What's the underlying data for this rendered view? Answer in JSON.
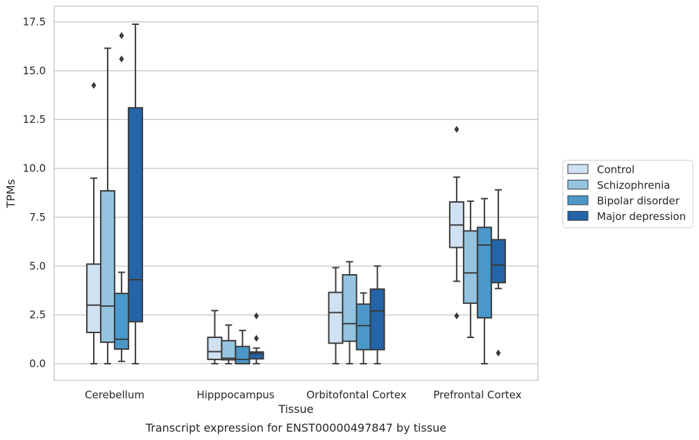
{
  "chart_data": {
    "type": "box",
    "caption": "Transcript expression for ENST00000497847 by tissue",
    "xlabel": "Tissue",
    "ylabel": "TPMs",
    "ylim": [
      -0.85,
      18.3
    ],
    "yticks": [
      0.0,
      2.5,
      5.0,
      7.5,
      10.0,
      12.5,
      15.0,
      17.5
    ],
    "ytick_labels": [
      "0.0",
      "2.5",
      "5.0",
      "7.5",
      "10.0",
      "12.5",
      "15.0",
      "17.5"
    ],
    "grid": "horizontal",
    "legend_position": "right",
    "categories": [
      "Cerebellum",
      "Hipppocampus",
      "Orbitofontal Cortex",
      "Prefrontal Cortex"
    ],
    "series": [
      {
        "name": "Control",
        "color": "#d0e1f2",
        "boxes": [
          {
            "whislo": 0.0,
            "q1": 1.6,
            "med": 3.0,
            "q3": 5.1,
            "whishi": 9.5,
            "fliers": [
              14.25
            ]
          },
          {
            "whislo": 0.0,
            "q1": 0.22,
            "med": 0.62,
            "q3": 1.35,
            "whishi": 2.72,
            "fliers": []
          },
          {
            "whislo": 0.0,
            "q1": 1.05,
            "med": 2.62,
            "q3": 3.65,
            "whishi": 4.92,
            "fliers": []
          },
          {
            "whislo": 4.22,
            "q1": 5.95,
            "med": 7.1,
            "q3": 8.28,
            "whishi": 9.55,
            "fliers": [
              12.0,
              2.45
            ]
          }
        ]
      },
      {
        "name": "Schizophrenia",
        "color": "#94c4df",
        "boxes": [
          {
            "whislo": 0.0,
            "q1": 1.1,
            "med": 2.95,
            "q3": 8.85,
            "whishi": 16.15,
            "fliers": []
          },
          {
            "whislo": 0.0,
            "q1": 0.2,
            "med": 0.28,
            "q3": 1.18,
            "whishi": 1.98,
            "fliers": []
          },
          {
            "whislo": 0.0,
            "q1": 1.15,
            "med": 2.05,
            "q3": 4.55,
            "whishi": 5.22,
            "fliers": []
          },
          {
            "whislo": 1.35,
            "q1": 3.1,
            "med": 4.65,
            "q3": 6.8,
            "whishi": 8.32,
            "fliers": []
          }
        ]
      },
      {
        "name": "Bipolar disorder",
        "color": "#4a98c9",
        "boxes": [
          {
            "whislo": 0.12,
            "q1": 0.75,
            "med": 1.25,
            "q3": 3.6,
            "whishi": 4.68,
            "fliers": [
              16.8,
              15.6
            ]
          },
          {
            "whislo": 0.0,
            "q1": 0.0,
            "med": 0.22,
            "q3": 0.88,
            "whishi": 1.7,
            "fliers": []
          },
          {
            "whislo": 0.0,
            "q1": 0.72,
            "med": 1.95,
            "q3": 3.05,
            "whishi": 3.62,
            "fliers": []
          },
          {
            "whislo": 0.0,
            "q1": 2.35,
            "med": 6.08,
            "q3": 6.98,
            "whishi": 8.45,
            "fliers": []
          }
        ]
      },
      {
        "name": "Major depression",
        "color": "#2464a8",
        "boxes": [
          {
            "whislo": 0.0,
            "q1": 2.15,
            "med": 4.3,
            "q3": 13.1,
            "whishi": 17.38,
            "fliers": []
          },
          {
            "whislo": 0.0,
            "q1": 0.25,
            "med": 0.52,
            "q3": 0.6,
            "whishi": 0.8,
            "fliers": [
              2.45,
              1.3
            ]
          },
          {
            "whislo": 0.0,
            "q1": 0.72,
            "med": 2.7,
            "q3": 3.82,
            "whishi": 5.0,
            "fliers": []
          },
          {
            "whislo": 3.85,
            "q1": 4.15,
            "med": 5.05,
            "q3": 6.35,
            "whishi": 8.9,
            "fliers": [
              0.55
            ]
          }
        ]
      }
    ]
  }
}
